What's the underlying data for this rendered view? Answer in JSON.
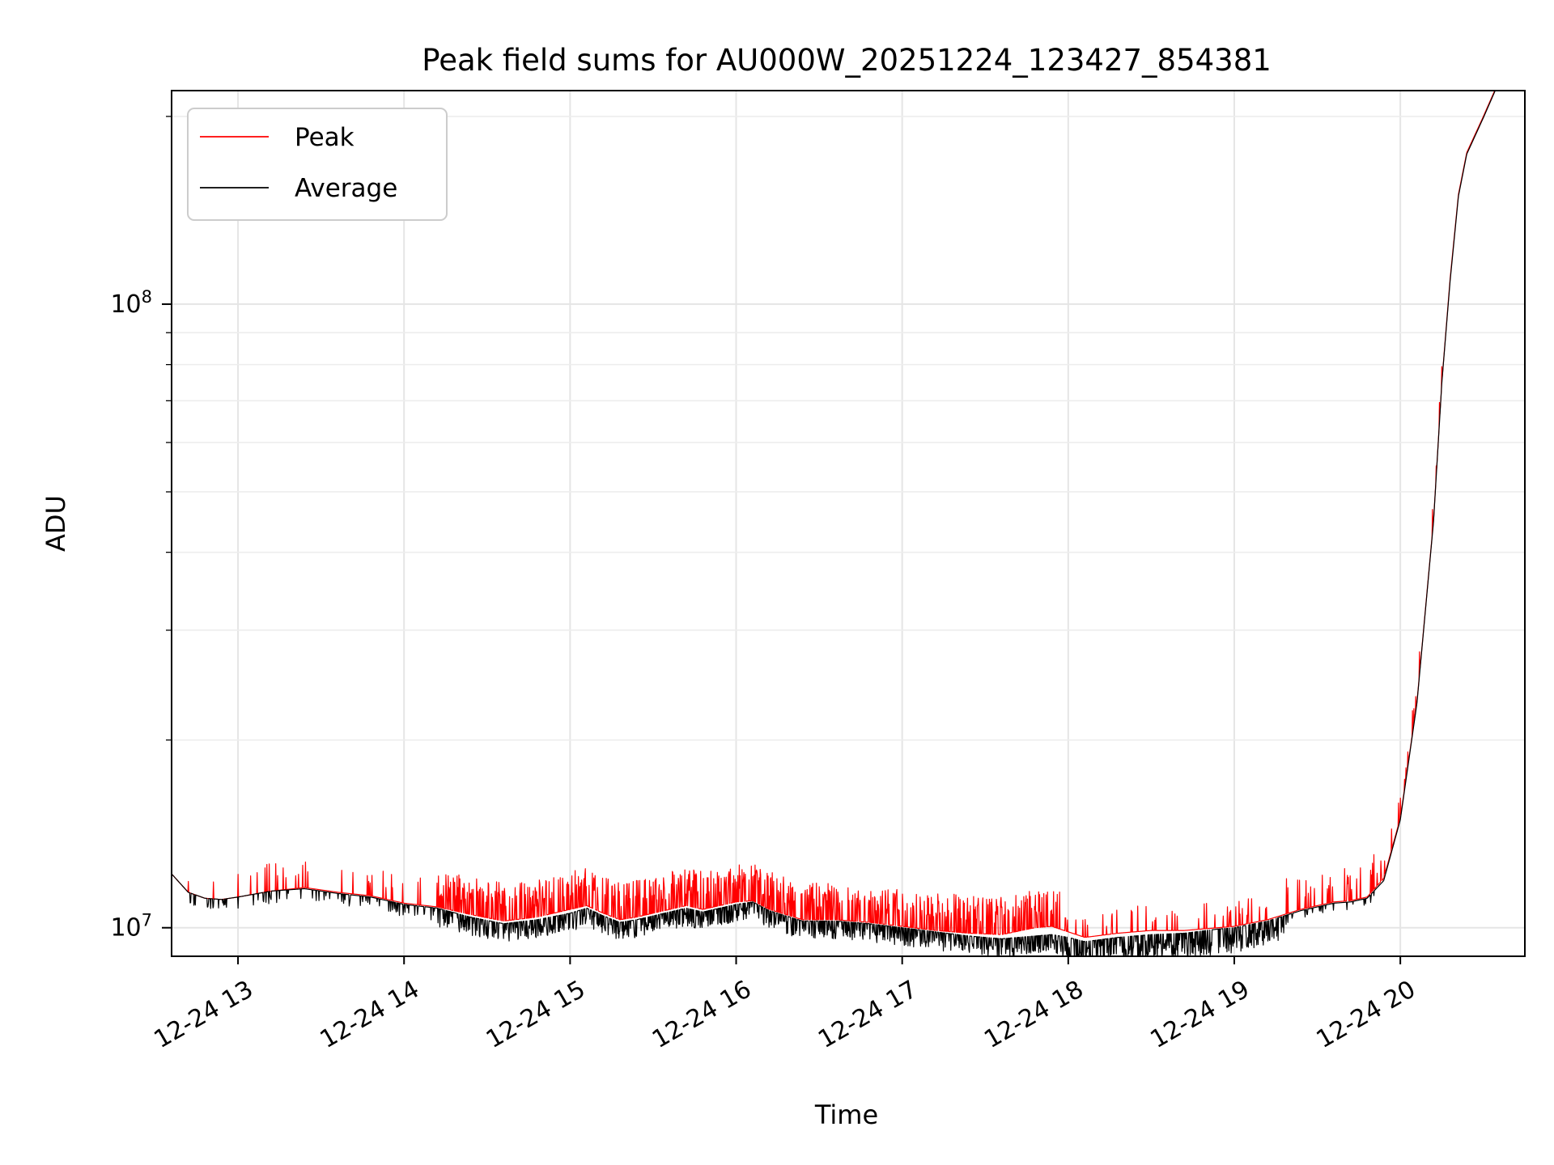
{
  "chart_data": {
    "type": "line",
    "title": "Peak field sums for AU000W_20251224_123427_854381",
    "xlabel": "Time",
    "ylabel": "ADU",
    "yscale": "log",
    "ylim": [
      9000000,
      220000000
    ],
    "xlim": [
      12.6,
      20.75
    ],
    "grid": true,
    "legend_position": "top-left",
    "x_ticks": [
      {
        "value": 13,
        "label": "12-24 13"
      },
      {
        "value": 14,
        "label": "12-24 14"
      },
      {
        "value": 15,
        "label": "12-24 15"
      },
      {
        "value": 16,
        "label": "12-24 16"
      },
      {
        "value": 17,
        "label": "12-24 17"
      },
      {
        "value": 18,
        "label": "12-24 18"
      },
      {
        "value": 19,
        "label": "12-24 19"
      },
      {
        "value": 20,
        "label": "12-24 20"
      }
    ],
    "y_major_ticks": [
      {
        "value": 10000000,
        "base": "10",
        "exp": "7"
      },
      {
        "value": 100000000,
        "base": "10",
        "exp": "8"
      }
    ],
    "series": [
      {
        "name": "Peak",
        "color": "#ff0000",
        "x": [
          12.6,
          12.7,
          12.8,
          12.9,
          13.0,
          13.2,
          13.4,
          13.6,
          13.8,
          14.0,
          14.2,
          14.4,
          14.6,
          14.8,
          15.0,
          15.1,
          15.2,
          15.3,
          15.4,
          15.6,
          15.7,
          15.8,
          16.0,
          16.1,
          16.2,
          16.4,
          16.6,
          16.8,
          17.0,
          17.2,
          17.4,
          17.6,
          17.8,
          17.9,
          18.0,
          18.1,
          18.3,
          18.5,
          18.7,
          18.9,
          19.0,
          19.2,
          19.4,
          19.6,
          19.7,
          19.8,
          19.9,
          20.0,
          20.1,
          20.2,
          20.25,
          20.3,
          20.35,
          20.4,
          20.5,
          20.6
        ],
        "values": [
          12200000,
          11400000,
          11150000,
          11100000,
          11200000,
          11450000,
          11600000,
          11400000,
          11250000,
          10950000,
          10800000,
          10500000,
          10250000,
          10400000,
          10700000,
          10850000,
          10550000,
          10300000,
          10400000,
          10700000,
          10850000,
          10700000,
          11000000,
          11050000,
          10700000,
          10300000,
          10300000,
          10200000,
          10050000,
          9900000,
          9800000,
          9750000,
          10000000,
          10050000,
          9850000,
          9650000,
          9800000,
          9900000,
          9900000,
          10000000,
          10050000,
          10300000,
          10700000,
          11000000,
          11050000,
          11200000,
          12000000,
          15000000,
          23000000,
          45000000,
          75000000,
          110000000,
          150000000,
          175000000,
          200000000,
          230000000
        ]
      },
      {
        "name": "Average",
        "color": "#000000",
        "x": [
          12.6,
          12.7,
          12.8,
          12.9,
          13.0,
          13.2,
          13.4,
          13.6,
          13.8,
          14.0,
          14.2,
          14.4,
          14.6,
          14.8,
          15.0,
          15.1,
          15.2,
          15.3,
          15.4,
          15.6,
          15.7,
          15.8,
          16.0,
          16.1,
          16.2,
          16.4,
          16.6,
          16.8,
          17.0,
          17.2,
          17.4,
          17.6,
          17.8,
          17.9,
          18.0,
          18.1,
          18.3,
          18.5,
          18.7,
          18.9,
          19.0,
          19.2,
          19.4,
          19.6,
          19.7,
          19.8,
          19.9,
          20.0,
          20.1,
          20.2,
          20.25,
          20.3,
          20.35,
          20.4,
          20.5,
          20.6
        ],
        "values": [
          12200000,
          11400000,
          11150000,
          11100000,
          11200000,
          11450000,
          11550000,
          11350000,
          11200000,
          10900000,
          10750000,
          10400000,
          10150000,
          10300000,
          10550000,
          10750000,
          10450000,
          10200000,
          10300000,
          10600000,
          10750000,
          10600000,
          10900000,
          11000000,
          10650000,
          10250000,
          10250000,
          10150000,
          10000000,
          9850000,
          9700000,
          9600000,
          9700000,
          9750000,
          9650000,
          9500000,
          9650000,
          9750000,
          9800000,
          9950000,
          10000000,
          10250000,
          10650000,
          10950000,
          11000000,
          11150000,
          11900000,
          14900000,
          22900000,
          44800000,
          74800000,
          109000000,
          149000000,
          174000000,
          199000000,
          229000000
        ]
      }
    ]
  }
}
